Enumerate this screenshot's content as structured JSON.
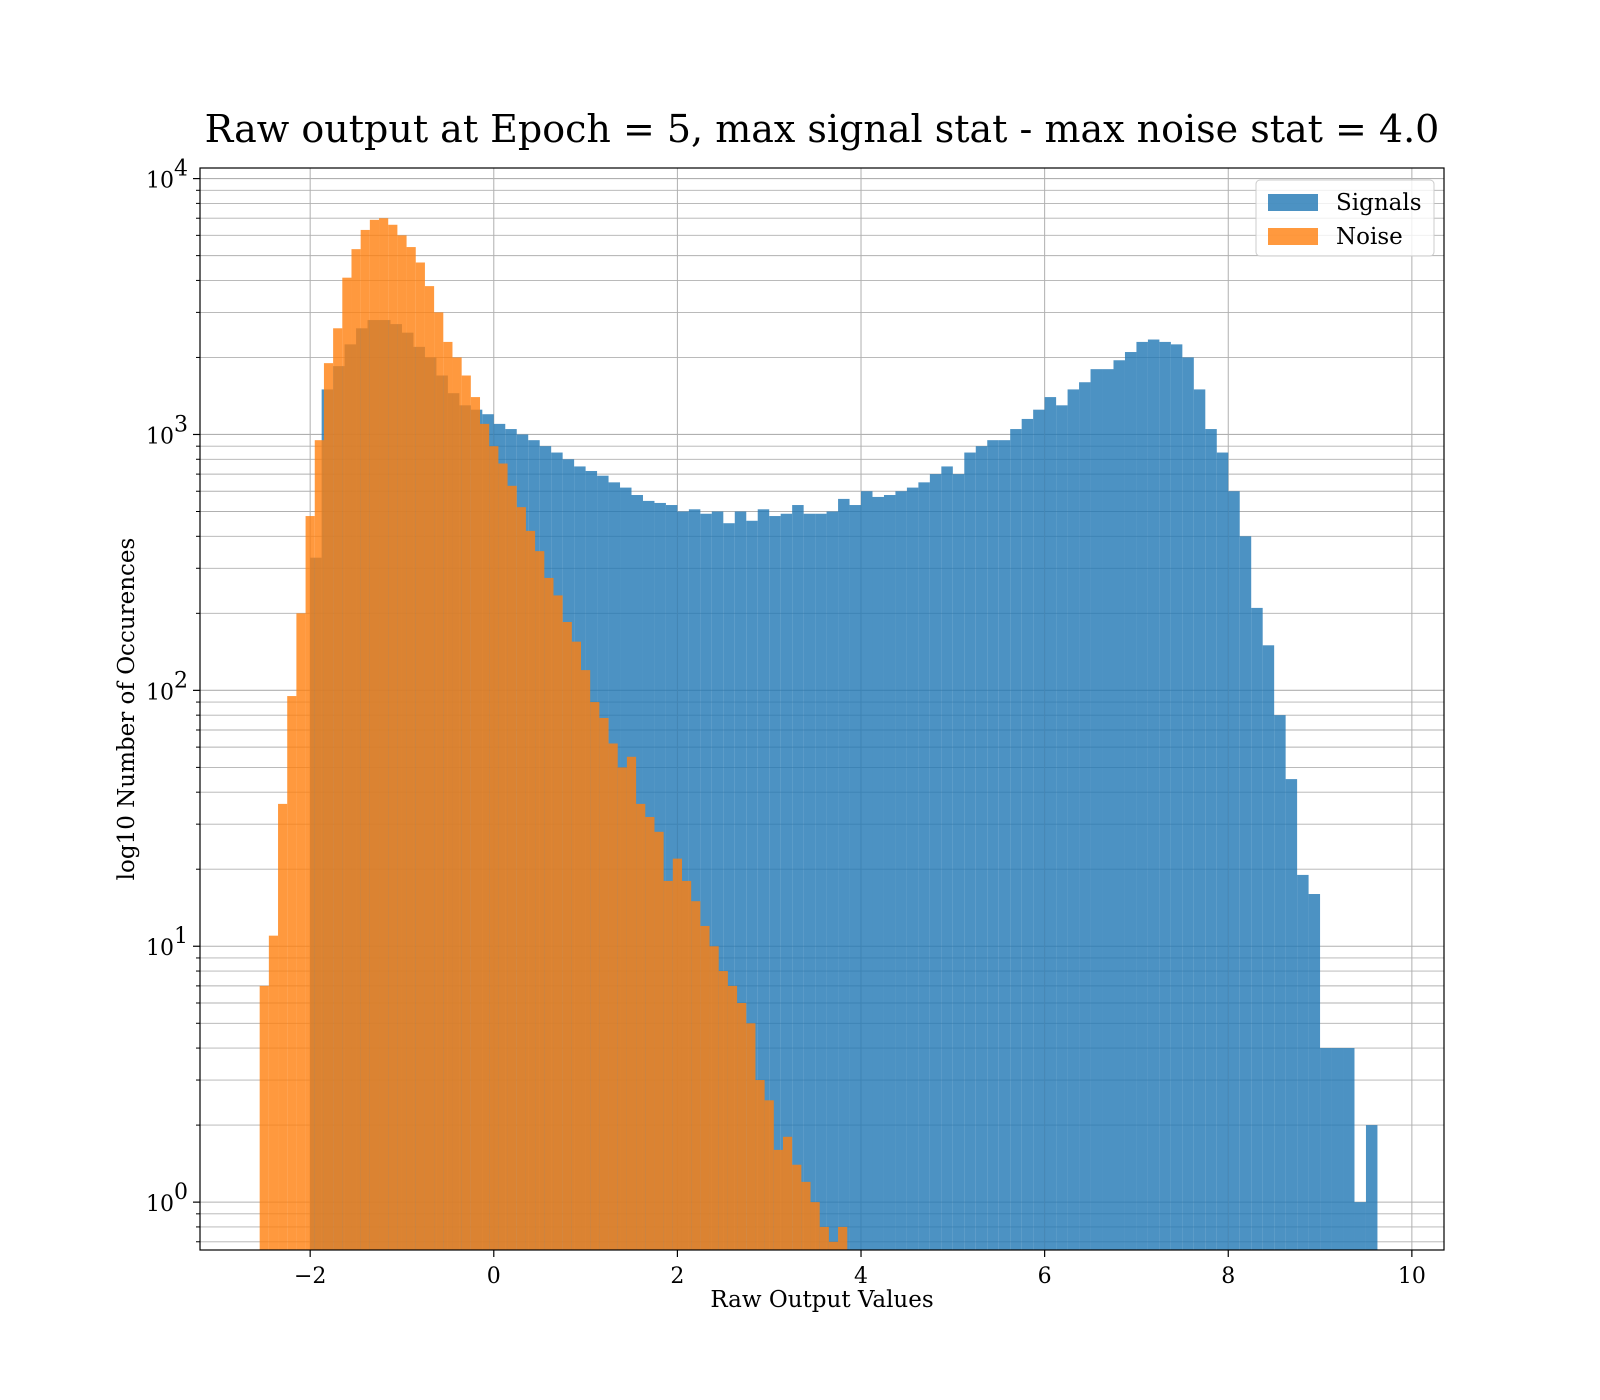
{
  "chart_data": {
    "type": "bar",
    "title": "Raw output at Epoch = 5, max signal stat - max noise stat = 4.0",
    "xlabel": "Raw Output Values",
    "ylabel": "log10 Number of Occurences",
    "xlim": [
      -3.2,
      10.35
    ],
    "ylim": [
      0.65,
      11000
    ],
    "yscale": "log",
    "grid": true,
    "legend_position": "top-right",
    "xticks": [
      -2,
      0,
      2,
      4,
      6,
      8,
      10
    ],
    "xtick_labels": [
      "−2",
      "0",
      "2",
      "4",
      "6",
      "8",
      "10"
    ],
    "yticks": [
      1,
      10,
      100,
      1000,
      10000
    ],
    "ytick_labels": [
      {
        "base": "10",
        "exp": "0"
      },
      {
        "base": "10",
        "exp": "1"
      },
      {
        "base": "10",
        "exp": "2"
      },
      {
        "base": "10",
        "exp": "3"
      },
      {
        "base": "10",
        "exp": "4"
      }
    ],
    "series": [
      {
        "name": "Signals",
        "color": "#1f77b4",
        "alpha": 0.8,
        "x_start": -2.0,
        "bin_width": 0.125,
        "values": [
          330,
          1500,
          1850,
          2250,
          2600,
          2800,
          2800,
          2700,
          2500,
          2200,
          2000,
          1700,
          1450,
          1300,
          1250,
          1200,
          1100,
          1050,
          1000,
          950,
          900,
          850,
          800,
          750,
          720,
          690,
          650,
          620,
          580,
          550,
          540,
          530,
          500,
          510,
          490,
          500,
          450,
          500,
          460,
          510,
          480,
          490,
          530,
          490,
          490,
          500,
          560,
          530,
          600,
          570,
          580,
          600,
          620,
          650,
          700,
          750,
          700,
          850,
          900,
          950,
          950,
          1050,
          1150,
          1250,
          1400,
          1300,
          1500,
          1600,
          1800,
          1800,
          1950,
          2100,
          2300,
          2350,
          2300,
          2250,
          2000,
          1500,
          1050,
          850,
          600,
          400,
          210,
          150,
          80,
          45,
          19,
          16,
          4,
          4,
          4,
          1,
          2
        ]
      },
      {
        "name": "Noise",
        "color": "#ff7f0e",
        "alpha": 0.8,
        "x_start": -2.55,
        "bin_width": 0.1,
        "values": [
          7,
          11,
          36,
          95,
          200,
          480,
          950,
          1900,
          2600,
          4100,
          5300,
          6300,
          6900,
          7000,
          6600,
          6000,
          5400,
          4700,
          3800,
          3000,
          2300,
          2000,
          1700,
          1400,
          1100,
          900,
          770,
          630,
          520,
          420,
          350,
          275,
          235,
          185,
          155,
          120,
          90,
          78,
          62,
          50,
          55,
          36,
          32,
          28,
          18,
          22,
          18,
          15,
          12,
          10,
          8,
          7,
          6,
          5,
          3,
          2.5,
          1.6,
          1.8,
          1.4,
          1.2,
          1.0,
          0.8,
          0.7,
          0.8,
          0.6,
          0.5,
          0.4,
          0.3
        ]
      }
    ]
  }
}
